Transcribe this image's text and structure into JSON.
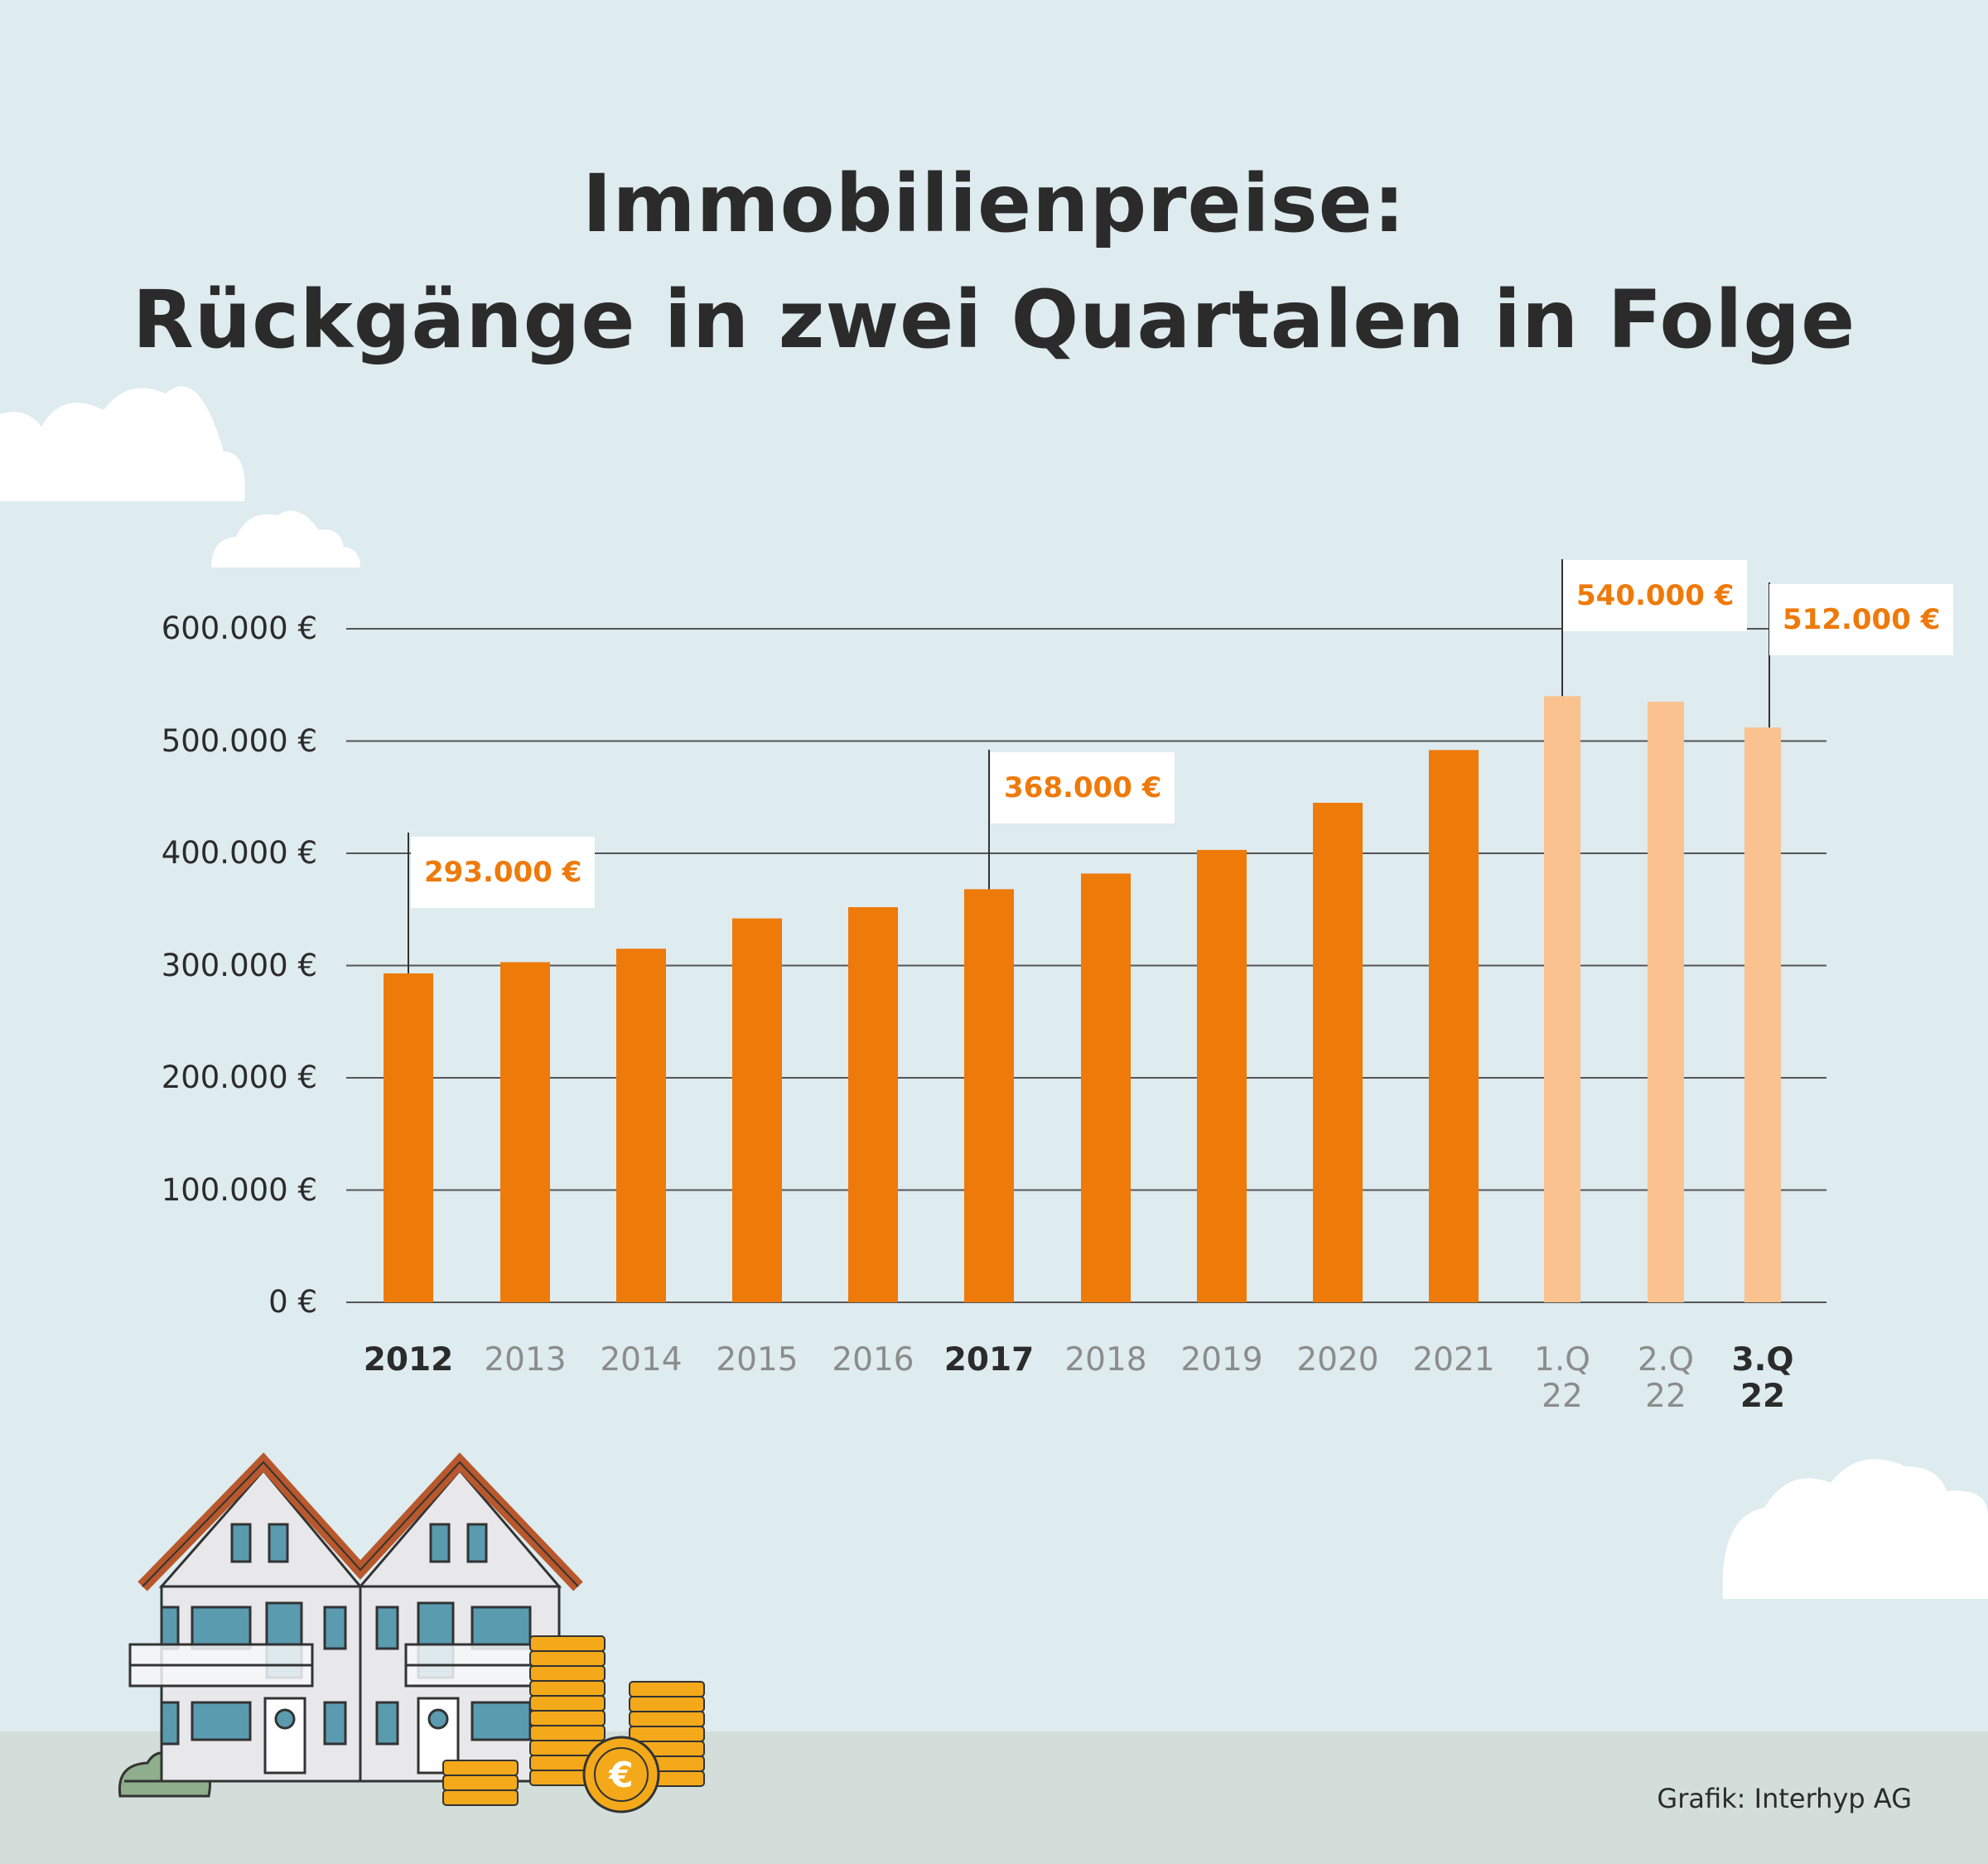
{
  "colors": {
    "sky": "#deebef",
    "ground": "#d3ddd9",
    "bar_year": "#ee7a0a",
    "bar_quarter": "#f9c28e",
    "text_dark": "#2b2b2b",
    "text_muted": "#8c8c8c",
    "gridline": "#555555"
  },
  "chart_data": {
    "type": "bar",
    "title": "Immobilienpreise:",
    "subtitle": "Rückgänge in zwei Quartalen in Folge",
    "categories": [
      "2012",
      "2013",
      "2014",
      "2015",
      "2016",
      "2017",
      "2018",
      "2019",
      "2020",
      "2021",
      "1.Q 22",
      "2.Q 22",
      "3.Q 22"
    ],
    "category_lines": [
      [
        "2012"
      ],
      [
        "2013"
      ],
      [
        "2014"
      ],
      [
        "2015"
      ],
      [
        "2016"
      ],
      [
        "2017"
      ],
      [
        "2018"
      ],
      [
        "2019"
      ],
      [
        "2020"
      ],
      [
        "2021"
      ],
      [
        "1.Q",
        "22"
      ],
      [
        "2.Q",
        "22"
      ],
      [
        "3.Q",
        "22"
      ]
    ],
    "highlighted_categories": [
      "2012",
      "2017",
      "3.Q 22"
    ],
    "values": [
      293000,
      303000,
      315000,
      342000,
      352000,
      368000,
      382000,
      403000,
      445000,
      492000,
      540000,
      535000,
      512000
    ],
    "bar_kind": [
      "year",
      "year",
      "year",
      "year",
      "year",
      "year",
      "year",
      "year",
      "year",
      "year",
      "quarter",
      "quarter",
      "quarter"
    ],
    "ylim": [
      0,
      600000
    ],
    "yticks": [
      0,
      100000,
      200000,
      300000,
      400000,
      500000,
      600000
    ],
    "ytick_labels": [
      "0 €",
      "100.000 €",
      "200.000 €",
      "300.000 €",
      "400.000 €",
      "500.000 €",
      "600.000 €"
    ],
    "grid": true,
    "xlabel": "",
    "ylabel": "",
    "annotations": [
      {
        "category": "2012",
        "label": "293.000 €"
      },
      {
        "category": "2017",
        "label": "368.000 €"
      },
      {
        "category": "1.Q 22",
        "label": "540.000 €"
      },
      {
        "category": "3.Q 22",
        "label": "512.000 €"
      }
    ]
  },
  "credit": "Grafik: Interhyp AG",
  "illustration": {
    "icons": [
      "cloud-icon",
      "house-icon",
      "coin-stack-icon",
      "euro-coin-icon",
      "bush-icon"
    ],
    "coin_symbol": "€"
  }
}
